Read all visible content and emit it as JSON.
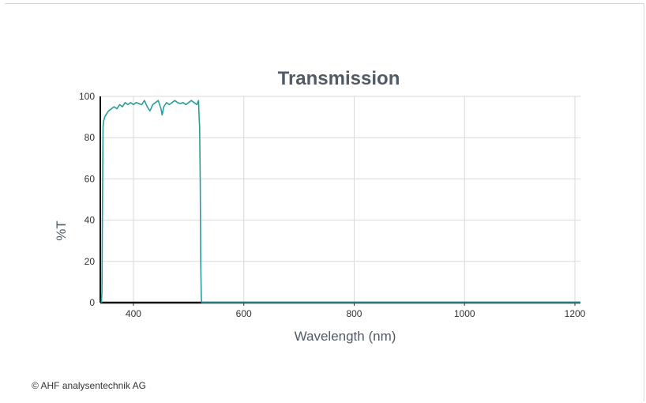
{
  "chart_data": {
    "type": "line",
    "title": "Transmission",
    "xlabel": "Wavelength (nm)",
    "ylabel": "%T",
    "xlim": [
      340,
      1210
    ],
    "ylim": [
      0,
      100
    ],
    "xticks": [
      400,
      600,
      800,
      1000,
      1200
    ],
    "yticks": [
      0,
      20,
      40,
      60,
      80,
      100
    ],
    "grid": true,
    "legend": "none",
    "series": [
      {
        "color": "#2a9d9a",
        "points": [
          [
            342,
            0
          ],
          [
            343,
            5
          ],
          [
            344,
            50
          ],
          [
            345,
            85
          ],
          [
            346,
            88
          ],
          [
            348,
            90
          ],
          [
            350,
            91
          ],
          [
            355,
            93
          ],
          [
            360,
            94
          ],
          [
            365,
            95
          ],
          [
            370,
            94
          ],
          [
            375,
            96
          ],
          [
            380,
            95
          ],
          [
            385,
            97
          ],
          [
            390,
            96
          ],
          [
            395,
            97
          ],
          [
            400,
            96
          ],
          [
            405,
            97
          ],
          [
            410,
            96.5
          ],
          [
            415,
            96
          ],
          [
            420,
            98
          ],
          [
            425,
            95
          ],
          [
            430,
            93
          ],
          [
            435,
            96
          ],
          [
            440,
            97
          ],
          [
            445,
            98
          ],
          [
            450,
            94
          ],
          [
            452,
            91
          ],
          [
            455,
            95
          ],
          [
            460,
            97
          ],
          [
            465,
            96
          ],
          [
            470,
            97
          ],
          [
            475,
            98
          ],
          [
            480,
            97
          ],
          [
            485,
            96.5
          ],
          [
            490,
            97
          ],
          [
            495,
            96
          ],
          [
            500,
            97
          ],
          [
            505,
            98
          ],
          [
            510,
            97
          ],
          [
            515,
            96
          ],
          [
            518,
            98
          ],
          [
            519,
            90
          ],
          [
            520,
            85
          ],
          [
            521,
            60
          ],
          [
            522,
            20
          ],
          [
            523,
            2
          ],
          [
            524,
            0
          ],
          [
            1210,
            0
          ]
        ]
      }
    ]
  },
  "footer": {
    "copyright": "© AHF analysentechnik AG"
  }
}
